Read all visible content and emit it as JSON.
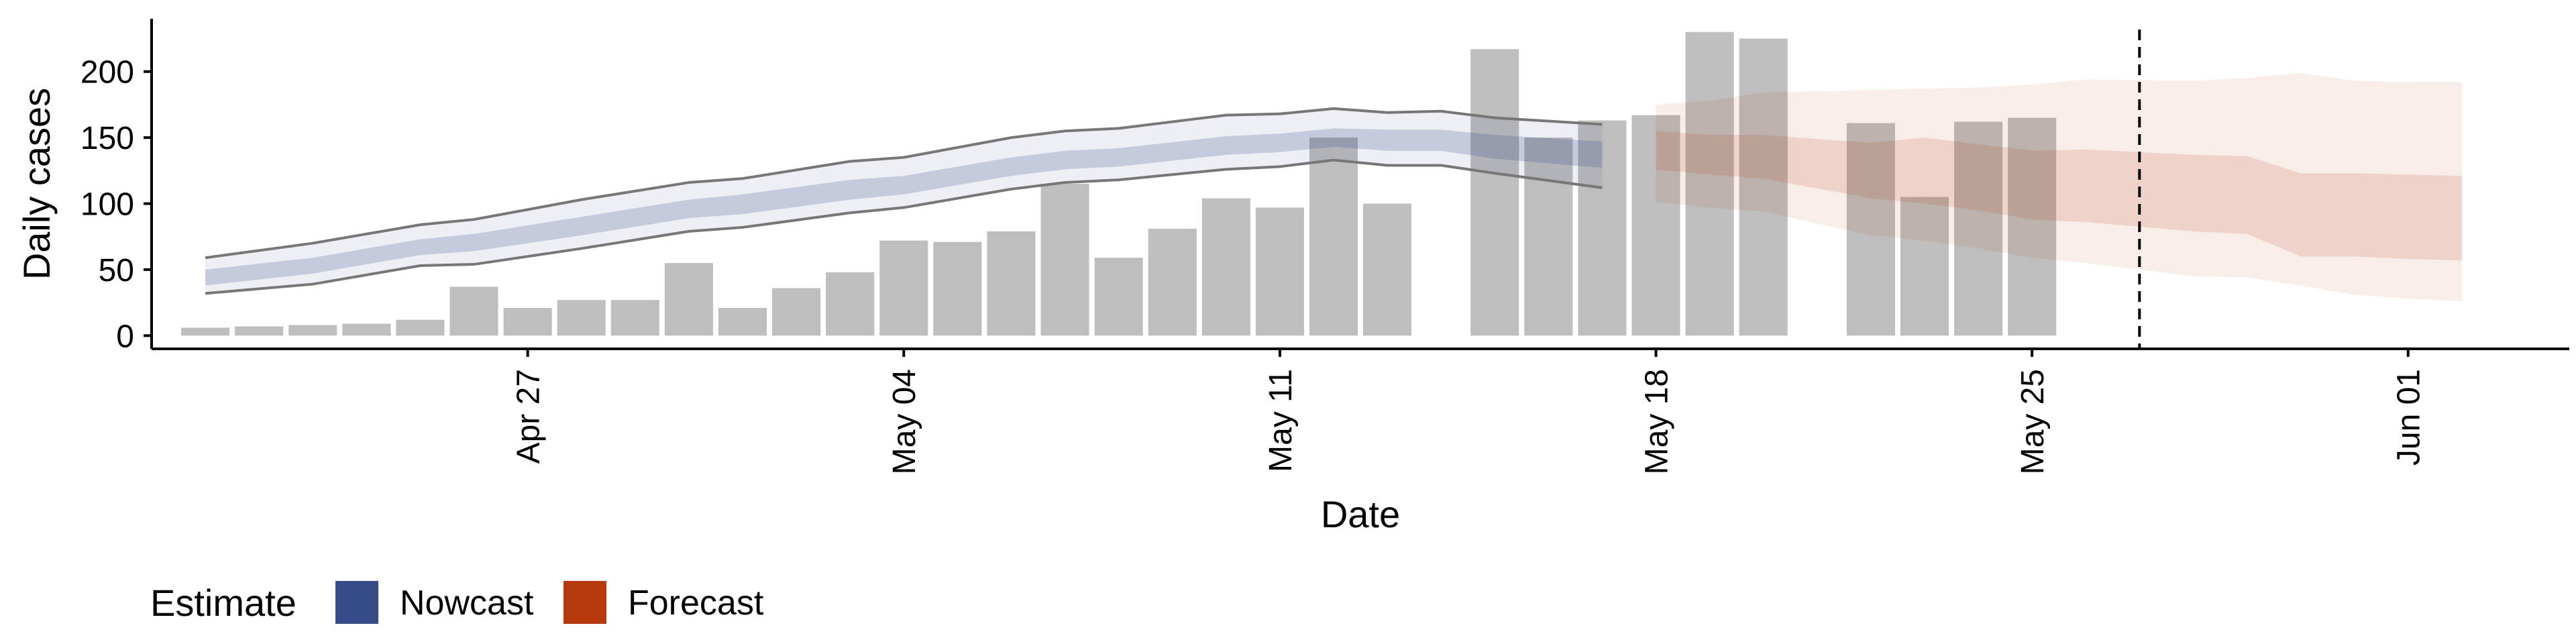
{
  "chart_data": {
    "type": "bar",
    "xlabel": "Date",
    "ylabel": "Daily cases",
    "x_tick_labels": [
      "Apr 27",
      "May 04",
      "May 11",
      "May 18",
      "May 25",
      "Jun 01"
    ],
    "x_tick_dates": [
      "2020-04-27",
      "2020-05-04",
      "2020-05-11",
      "2020-05-18",
      "2020-05-25",
      "2020-06-01"
    ],
    "xlim": [
      "2020-04-20",
      "2020-06-04"
    ],
    "y_ticks": [
      0,
      50,
      100,
      150,
      200
    ],
    "ylim": [
      -10,
      240
    ],
    "grid": false,
    "vline_date": "2020-05-27",
    "legend": {
      "title": "Estimate",
      "position": "bottom-left",
      "entries": [
        {
          "label": "Nowcast",
          "color": "#354B8A"
        },
        {
          "label": "Forecast",
          "color": "#B5390B"
        }
      ]
    },
    "bars": [
      {
        "date": "2020-04-21",
        "value": 6
      },
      {
        "date": "2020-04-22",
        "value": 7
      },
      {
        "date": "2020-04-23",
        "value": 8
      },
      {
        "date": "2020-04-24",
        "value": 9
      },
      {
        "date": "2020-04-25",
        "value": 12
      },
      {
        "date": "2020-04-26",
        "value": 37
      },
      {
        "date": "2020-04-27",
        "value": 21
      },
      {
        "date": "2020-04-28",
        "value": 27
      },
      {
        "date": "2020-04-29",
        "value": 27
      },
      {
        "date": "2020-04-30",
        "value": 55
      },
      {
        "date": "2020-05-01",
        "value": 21
      },
      {
        "date": "2020-05-02",
        "value": 36
      },
      {
        "date": "2020-05-03",
        "value": 48
      },
      {
        "date": "2020-05-04",
        "value": 72
      },
      {
        "date": "2020-05-05",
        "value": 71
      },
      {
        "date": "2020-05-06",
        "value": 79
      },
      {
        "date": "2020-05-07",
        "value": 115
      },
      {
        "date": "2020-05-08",
        "value": 59
      },
      {
        "date": "2020-05-09",
        "value": 81
      },
      {
        "date": "2020-05-10",
        "value": 104
      },
      {
        "date": "2020-05-11",
        "value": 97
      },
      {
        "date": "2020-05-12",
        "value": 150
      },
      {
        "date": "2020-05-13",
        "value": 100
      },
      {
        "date": "2020-05-15",
        "value": 217
      },
      {
        "date": "2020-05-16",
        "value": 150
      },
      {
        "date": "2020-05-17",
        "value": 163
      },
      {
        "date": "2020-05-18",
        "value": 167
      },
      {
        "date": "2020-05-19",
        "value": 230
      },
      {
        "date": "2020-05-20",
        "value": 225
      },
      {
        "date": "2020-05-22",
        "value": 161
      },
      {
        "date": "2020-05-23",
        "value": 105
      },
      {
        "date": "2020-05-24",
        "value": 162
      },
      {
        "date": "2020-05-25",
        "value": 165
      }
    ],
    "nowcast": [
      {
        "date": "2020-04-21",
        "lo90": 32,
        "lo50": 38,
        "mid": 44,
        "hi50": 50,
        "hi90": 59
      },
      {
        "date": "2020-04-23",
        "lo90": 39,
        "lo50": 47,
        "mid": 53,
        "hi50": 59,
        "hi90": 70
      },
      {
        "date": "2020-04-25",
        "lo90": 53,
        "lo50": 61,
        "mid": 67,
        "hi50": 73,
        "hi90": 84
      },
      {
        "date": "2020-04-26",
        "lo90": 54,
        "lo50": 64,
        "mid": 71,
        "hi50": 77,
        "hi90": 88
      },
      {
        "date": "2020-04-28",
        "lo90": 66,
        "lo50": 76,
        "mid": 83,
        "hi50": 90,
        "hi90": 103
      },
      {
        "date": "2020-04-30",
        "lo90": 79,
        "lo50": 89,
        "mid": 96,
        "hi50": 103,
        "hi90": 116
      },
      {
        "date": "2020-05-01",
        "lo90": 82,
        "lo50": 92,
        "mid": 99,
        "hi50": 107,
        "hi90": 119
      },
      {
        "date": "2020-05-03",
        "lo90": 93,
        "lo50": 103,
        "mid": 110,
        "hi50": 118,
        "hi90": 132
      },
      {
        "date": "2020-05-04",
        "lo90": 97,
        "lo50": 107,
        "mid": 114,
        "hi50": 121,
        "hi90": 135
      },
      {
        "date": "2020-05-06",
        "lo90": 111,
        "lo50": 121,
        "mid": 128,
        "hi50": 135,
        "hi90": 150
      },
      {
        "date": "2020-05-07",
        "lo90": 116,
        "lo50": 126,
        "mid": 133,
        "hi50": 140,
        "hi90": 155
      },
      {
        "date": "2020-05-08",
        "lo90": 118,
        "lo50": 128,
        "mid": 135,
        "hi50": 142,
        "hi90": 157
      },
      {
        "date": "2020-05-10",
        "lo90": 126,
        "lo50": 137,
        "mid": 144,
        "hi50": 151,
        "hi90": 167
      },
      {
        "date": "2020-05-11",
        "lo90": 128,
        "lo50": 139,
        "mid": 146,
        "hi50": 153,
        "hi90": 168
      },
      {
        "date": "2020-05-12",
        "lo90": 133,
        "lo50": 143,
        "mid": 150,
        "hi50": 157,
        "hi90": 172
      },
      {
        "date": "2020-05-13",
        "lo90": 129,
        "lo50": 140,
        "mid": 148,
        "hi50": 156,
        "hi90": 169
      },
      {
        "date": "2020-05-14",
        "lo90": 129,
        "lo50": 140,
        "mid": 148,
        "hi50": 156,
        "hi90": 170
      },
      {
        "date": "2020-05-15",
        "lo90": 123,
        "lo50": 134,
        "mid": 143,
        "hi50": 152,
        "hi90": 165
      },
      {
        "date": "2020-05-17",
        "lo90": 112,
        "lo50": 127,
        "mid": 137,
        "hi50": 147,
        "hi90": 160
      }
    ],
    "forecast": [
      {
        "date": "2020-05-18",
        "lo90": 101,
        "lo50": 126,
        "mid": 140,
        "hi50": 155,
        "hi90": 175
      },
      {
        "date": "2020-05-19",
        "lo90": 97,
        "lo50": 122,
        "mid": 137,
        "hi50": 152,
        "hi90": 178
      },
      {
        "date": "2020-05-20",
        "lo90": 94,
        "lo50": 119,
        "mid": 135,
        "hi50": 152,
        "hi90": 184
      },
      {
        "date": "2020-05-22",
        "lo90": 76,
        "lo50": 104,
        "mid": 122,
        "hi50": 146,
        "hi90": 186
      },
      {
        "date": "2020-05-23",
        "lo90": 72,
        "lo50": 100,
        "mid": 120,
        "hi50": 150,
        "hi90": 187
      },
      {
        "date": "2020-05-24",
        "lo90": 66,
        "lo50": 95,
        "mid": 115,
        "hi50": 145,
        "hi90": 188
      },
      {
        "date": "2020-05-25",
        "lo90": 59,
        "lo50": 88,
        "mid": 108,
        "hi50": 140,
        "hi90": 190
      },
      {
        "date": "2020-05-26",
        "lo90": 55,
        "lo50": 86,
        "mid": 106,
        "hi50": 141,
        "hi90": 194
      },
      {
        "date": "2020-05-28",
        "lo90": 45,
        "lo50": 79,
        "mid": 100,
        "hi50": 137,
        "hi90": 193
      },
      {
        "date": "2020-05-29",
        "lo90": 44,
        "lo50": 77,
        "mid": 98,
        "hi50": 136,
        "hi90": 195
      },
      {
        "date": "2020-05-30",
        "lo90": 38,
        "lo50": 60,
        "mid": 85,
        "hi50": 123,
        "hi90": 199
      },
      {
        "date": "2020-05-31",
        "lo90": 31,
        "lo50": 60,
        "mid": 83,
        "hi50": 123,
        "hi90": 193
      },
      {
        "date": "2020-06-01",
        "lo90": 28,
        "lo50": 58,
        "mid": 80,
        "hi50": 122,
        "hi90": 192
      },
      {
        "date": "2020-06-02",
        "lo90": 26,
        "lo50": 57,
        "mid": 79,
        "hi50": 121,
        "hi90": 192
      }
    ]
  }
}
